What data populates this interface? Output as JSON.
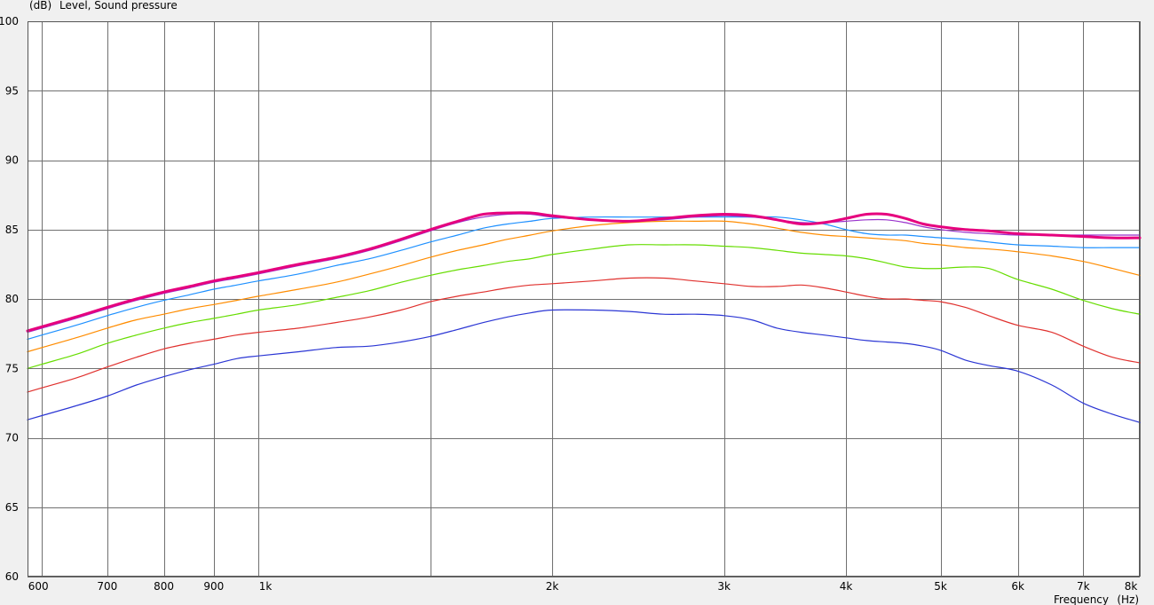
{
  "chart_data": {
    "type": "line",
    "ylabel_unit": "(dB)",
    "ylabel": "Level, Sound pressure",
    "xlabel": "Frequency",
    "xlabel_unit": "(Hz)",
    "x_scale": "log",
    "xlim": [
      580,
      8000
    ],
    "ylim": [
      60,
      100
    ],
    "yticks": [
      60,
      65,
      70,
      75,
      80,
      85,
      90,
      95,
      100
    ],
    "xticks": [
      {
        "value": 600,
        "label": "600"
      },
      {
        "value": 700,
        "label": "700"
      },
      {
        "value": 800,
        "label": "800"
      },
      {
        "value": 900,
        "label": "900"
      },
      {
        "value": 1000,
        "label": "1k"
      },
      {
        "value": 2000,
        "label": "2k"
      },
      {
        "value": 3000,
        "label": "3k"
      },
      {
        "value": 4000,
        "label": "4k"
      },
      {
        "value": 5000,
        "label": "5k"
      },
      {
        "value": 6000,
        "label": "6k"
      },
      {
        "value": 7000,
        "label": "7k"
      },
      {
        "value": 8000,
        "label": "8k"
      }
    ],
    "minor_grid_x": [
      1500
    ],
    "grid": true,
    "colors": {
      "background": "#f0f0f0",
      "plot_background": "#ffffff",
      "grid": "#707070",
      "axis": "#555555"
    },
    "x": [
      580,
      600,
      650,
      700,
      750,
      800,
      850,
      900,
      950,
      1000,
      1100,
      1200,
      1300,
      1400,
      1500,
      1600,
      1700,
      1800,
      1900,
      2000,
      2200,
      2400,
      2600,
      2800,
      3000,
      3200,
      3400,
      3600,
      3800,
      4000,
      4200,
      4400,
      4600,
      4800,
      5000,
      5300,
      5600,
      6000,
      6500,
      7000,
      7500,
      8000
    ],
    "series": [
      {
        "color": "#e6007e",
        "width": 3,
        "values": [
          77.7,
          78.0,
          78.7,
          79.4,
          80.0,
          80.5,
          80.9,
          81.3,
          81.6,
          81.9,
          82.5,
          83.0,
          83.6,
          84.3,
          85.0,
          85.6,
          86.1,
          86.2,
          86.2,
          86.0,
          85.7,
          85.6,
          85.8,
          86.0,
          86.1,
          86.0,
          85.7,
          85.4,
          85.5,
          85.8,
          86.1,
          86.1,
          85.8,
          85.4,
          85.2,
          85.0,
          84.9,
          84.7,
          84.6,
          84.5,
          84.4,
          84.4
        ]
      },
      {
        "color": "#9932cc",
        "width": 1.2,
        "values": [
          77.6,
          77.9,
          78.6,
          79.3,
          79.9,
          80.4,
          80.8,
          81.2,
          81.5,
          81.8,
          82.4,
          82.9,
          83.5,
          84.2,
          84.9,
          85.5,
          85.9,
          86.1,
          86.1,
          85.9,
          85.7,
          85.6,
          85.7,
          85.9,
          86.0,
          85.9,
          85.7,
          85.5,
          85.5,
          85.6,
          85.7,
          85.7,
          85.5,
          85.2,
          85.0,
          84.8,
          84.7,
          84.6,
          84.6,
          84.6,
          84.6,
          84.6
        ]
      },
      {
        "color": "#1e90ff",
        "width": 1.2,
        "values": [
          77.1,
          77.4,
          78.1,
          78.8,
          79.4,
          79.9,
          80.3,
          80.7,
          81.0,
          81.3,
          81.8,
          82.4,
          82.9,
          83.5,
          84.1,
          84.6,
          85.1,
          85.4,
          85.6,
          85.8,
          85.9,
          85.9,
          85.9,
          85.9,
          85.9,
          85.9,
          85.9,
          85.7,
          85.4,
          85.0,
          84.7,
          84.6,
          84.6,
          84.5,
          84.4,
          84.3,
          84.1,
          83.9,
          83.8,
          83.7,
          83.7,
          83.7
        ]
      },
      {
        "color": "#ff8c00",
        "width": 1.2,
        "values": [
          76.2,
          76.5,
          77.2,
          77.9,
          78.5,
          78.9,
          79.3,
          79.6,
          79.9,
          80.2,
          80.7,
          81.2,
          81.8,
          82.4,
          83.0,
          83.5,
          83.9,
          84.3,
          84.6,
          84.9,
          85.3,
          85.5,
          85.6,
          85.6,
          85.6,
          85.4,
          85.1,
          84.8,
          84.6,
          84.5,
          84.4,
          84.3,
          84.2,
          84.0,
          83.9,
          83.7,
          83.6,
          83.4,
          83.1,
          82.7,
          82.2,
          81.7
        ]
      },
      {
        "color": "#66dd00",
        "width": 1.2,
        "values": [
          75.0,
          75.3,
          76.0,
          76.8,
          77.4,
          77.9,
          78.3,
          78.6,
          78.9,
          79.2,
          79.6,
          80.1,
          80.6,
          81.2,
          81.7,
          82.1,
          82.4,
          82.7,
          82.9,
          83.2,
          83.6,
          83.9,
          83.9,
          83.9,
          83.8,
          83.7,
          83.5,
          83.3,
          83.2,
          83.1,
          82.9,
          82.6,
          82.3,
          82.2,
          82.2,
          82.3,
          82.2,
          81.4,
          80.7,
          79.9,
          79.3,
          78.9
        ]
      },
      {
        "color": "#e0312e",
        "width": 1.2,
        "values": [
          73.3,
          73.6,
          74.3,
          75.1,
          75.8,
          76.4,
          76.8,
          77.1,
          77.4,
          77.6,
          77.9,
          78.3,
          78.7,
          79.2,
          79.8,
          80.2,
          80.5,
          80.8,
          81.0,
          81.1,
          81.3,
          81.5,
          81.5,
          81.3,
          81.1,
          80.9,
          80.9,
          81.0,
          80.8,
          80.5,
          80.2,
          80.0,
          80.0,
          79.9,
          79.8,
          79.4,
          78.8,
          78.1,
          77.6,
          76.6,
          75.8,
          75.4
        ]
      },
      {
        "color": "#2b36d4",
        "width": 1.2,
        "values": [
          71.3,
          71.6,
          72.3,
          73.0,
          73.8,
          74.4,
          74.9,
          75.3,
          75.7,
          75.9,
          76.2,
          76.5,
          76.6,
          76.9,
          77.3,
          77.8,
          78.3,
          78.7,
          79.0,
          79.2,
          79.2,
          79.1,
          78.9,
          78.9,
          78.8,
          78.5,
          77.9,
          77.6,
          77.4,
          77.2,
          77.0,
          76.9,
          76.8,
          76.6,
          76.3,
          75.6,
          75.2,
          74.8,
          73.8,
          72.5,
          71.7,
          71.1
        ]
      }
    ]
  }
}
